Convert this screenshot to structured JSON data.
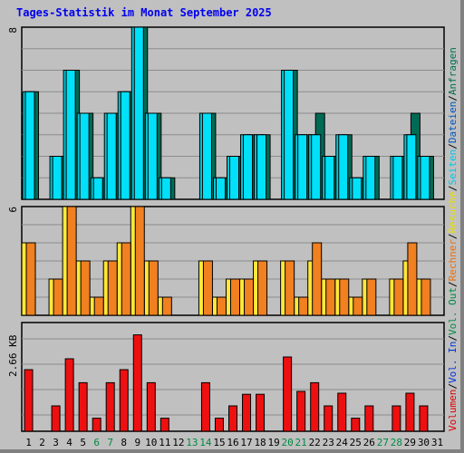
{
  "chart_data": [
    {
      "type": "bar",
      "title": "Tages-Statistik im Monat September 2025",
      "x": [
        "1",
        "2",
        "3",
        "4",
        "5",
        "6",
        "7",
        "8",
        "9",
        "10",
        "11",
        "12",
        "13",
        "14",
        "15",
        "16",
        "17",
        "18",
        "19",
        "20",
        "21",
        "22",
        "23",
        "24",
        "25",
        "26",
        "27",
        "28",
        "29",
        "30",
        "31"
      ],
      "weekend_days": [
        "6",
        "7",
        "13",
        "14",
        "20",
        "21",
        "27",
        "28"
      ],
      "ylim": [
        0,
        8
      ],
      "ytick_label": "8",
      "grid": true,
      "series": [
        {
          "name": "Anfragen",
          "color": "#006a55",
          "values": [
            5,
            0,
            2,
            6,
            4,
            1,
            4,
            5,
            8,
            4,
            1,
            0,
            0,
            4,
            1,
            2,
            3,
            3,
            0,
            6,
            3,
            4,
            2,
            3,
            1,
            2,
            0,
            2,
            4,
            2,
            0
          ]
        },
        {
          "name": "Dateien",
          "color": "#00c8d8",
          "values": [
            5,
            0,
            2,
            6,
            4,
            1,
            4,
            5,
            8,
            4,
            1,
            0,
            0,
            4,
            1,
            2,
            3,
            3,
            0,
            6,
            3,
            3,
            2,
            3,
            1,
            2,
            0,
            2,
            3,
            2,
            0
          ]
        },
        {
          "name": "Seiten",
          "color": "#00e0f8",
          "values": [
            5,
            0,
            2,
            6,
            4,
            1,
            4,
            5,
            8,
            4,
            1,
            0,
            0,
            4,
            1,
            2,
            3,
            3,
            0,
            6,
            3,
            3,
            2,
            3,
            1,
            2,
            0,
            2,
            3,
            2,
            0
          ]
        }
      ]
    },
    {
      "type": "bar",
      "ylim": [
        0,
        6
      ],
      "ytick_label": "6",
      "grid": true,
      "series": [
        {
          "name": "Besuche",
          "color": "#ffe838",
          "values": [
            4,
            0,
            2,
            6,
            3,
            1,
            3,
            4,
            6,
            3,
            1,
            0,
            0,
            3,
            1,
            2,
            2,
            3,
            0,
            3,
            1,
            3,
            2,
            2,
            1,
            2,
            0,
            2,
            3,
            2,
            0
          ]
        },
        {
          "name": "Rechner",
          "color": "#f08020",
          "values": [
            4,
            0,
            2,
            6,
            3,
            1,
            3,
            4,
            6,
            3,
            1,
            0,
            0,
            3,
            1,
            2,
            2,
            3,
            0,
            3,
            1,
            4,
            2,
            2,
            1,
            2,
            0,
            2,
            4,
            2,
            0
          ]
        }
      ]
    },
    {
      "type": "bar",
      "ylim": [
        0,
        3.0
      ],
      "ytick_value": 2.66,
      "ytick_label": "2.66 KB",
      "grid": true,
      "series": [
        {
          "name": "Volumen",
          "color": "#ee1010",
          "values": [
            1.7,
            0,
            0.7,
            2.0,
            1.34,
            0.36,
            1.34,
            1.7,
            2.66,
            1.34,
            0.36,
            0,
            0,
            1.34,
            0.36,
            0.7,
            1.02,
            1.02,
            0,
            2.05,
            1.1,
            1.34,
            0.7,
            1.05,
            0.36,
            0.7,
            0,
            0.7,
            1.05,
            0.7,
            0
          ]
        }
      ]
    }
  ],
  "right_legend": [
    {
      "text": "Volumen",
      "color": "#dd0000"
    },
    {
      "text": "Vol. In",
      "color": "#0033dd"
    },
    {
      "text": "Vol. Out",
      "color": "#008a40"
    },
    {
      "text": "Rechner",
      "color": "#e87010"
    },
    {
      "text": "Besuche",
      "color": "#e8e000"
    },
    {
      "text": "Seiten",
      "color": "#00c8e8"
    },
    {
      "text": "Dateien",
      "color": "#0055bb"
    },
    {
      "text": "Anfragen",
      "color": "#007050"
    }
  ],
  "colors": {
    "title": "#0000ee",
    "day_label": "#000000",
    "weekend_label": "#008a40",
    "grid": "#8c8c8c",
    "panel_bg": "#c0c0c0"
  }
}
